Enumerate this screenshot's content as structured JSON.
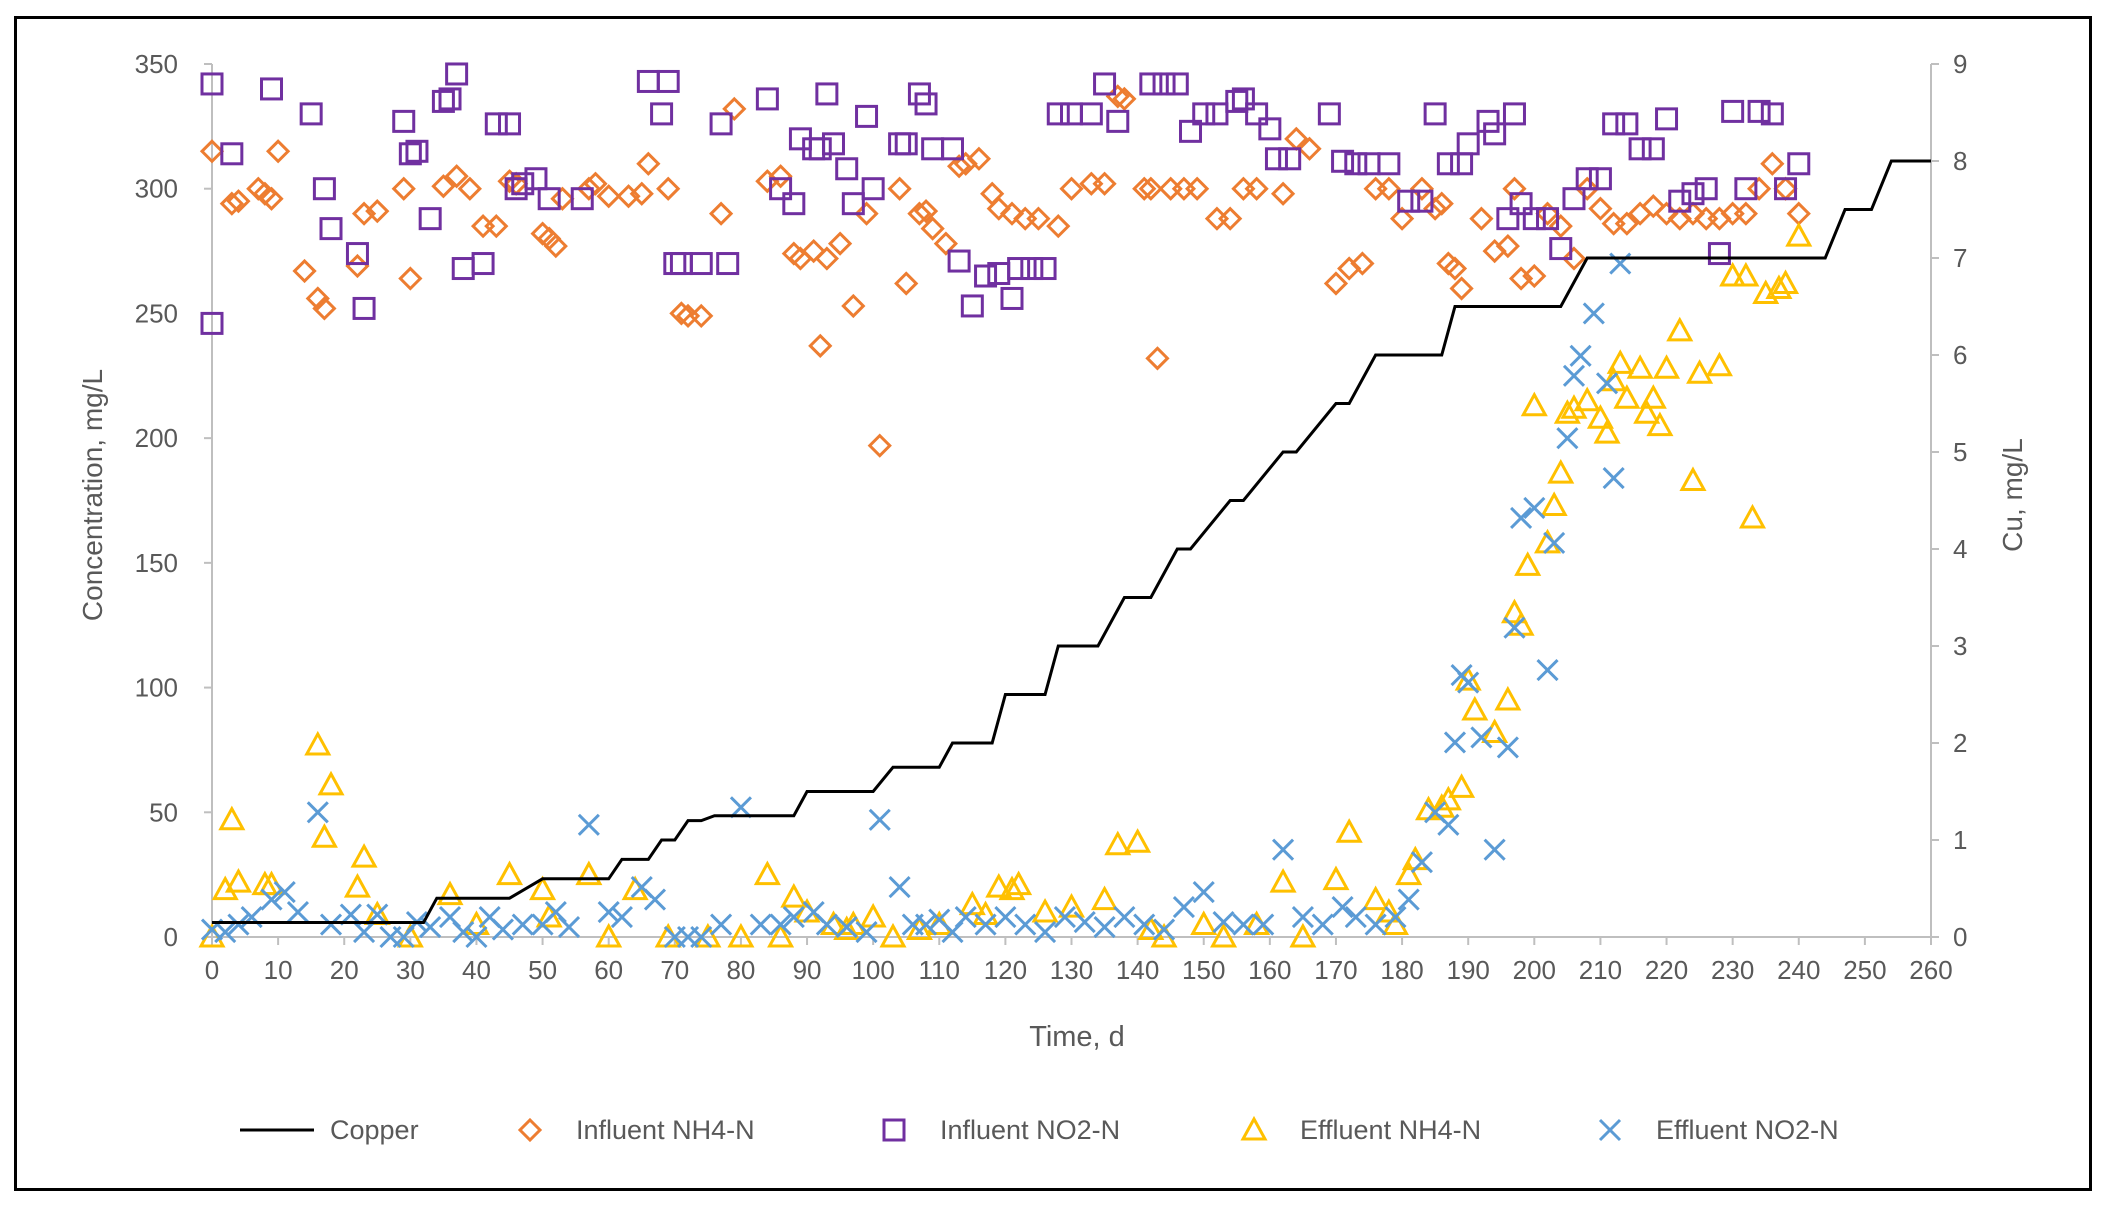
{
  "chart_data": {
    "type": "scatter",
    "xlabel": "Time, d",
    "ylabel_left": "Concentration, mg/L",
    "ylabel_right": "Cu, mg/L",
    "x_range": [
      0,
      260
    ],
    "x_ticks": [
      0,
      10,
      20,
      30,
      40,
      50,
      60,
      70,
      80,
      90,
      100,
      110,
      120,
      130,
      140,
      150,
      160,
      170,
      180,
      190,
      200,
      210,
      220,
      230,
      240,
      250,
      260
    ],
    "y_left_range": [
      0,
      350
    ],
    "y_left_ticks": [
      0,
      50,
      100,
      150,
      200,
      250,
      300,
      350
    ],
    "y_right_range": [
      0,
      9
    ],
    "y_right_ticks": [
      0,
      1,
      2,
      3,
      4,
      5,
      6,
      7,
      8,
      9
    ],
    "grid": false,
    "legend_position": "bottom",
    "series": [
      {
        "name": "Copper",
        "axis": "right",
        "marker": "line",
        "color": "#000000",
        "x": [
          0,
          32,
          34,
          45,
          50,
          60,
          62,
          66,
          68,
          70,
          72,
          74,
          76,
          78,
          88,
          90,
          100,
          103,
          110,
          112,
          118,
          120,
          126,
          128,
          134,
          138,
          142,
          146,
          148,
          154,
          156,
          162,
          164,
          170,
          172,
          176,
          178,
          186,
          188,
          194,
          196,
          204,
          208,
          222,
          224,
          230,
          232,
          240,
          244,
          247,
          251,
          254,
          260
        ],
        "y": [
          0.15,
          0.15,
          0.4,
          0.4,
          0.6,
          0.6,
          0.8,
          0.8,
          1.0,
          1.0,
          1.2,
          1.2,
          1.25,
          1.25,
          1.25,
          1.5,
          1.5,
          1.75,
          1.75,
          2.0,
          2.0,
          2.5,
          2.5,
          3.0,
          3.0,
          3.5,
          3.5,
          4.0,
          4.0,
          4.5,
          4.5,
          5.0,
          5.0,
          5.5,
          5.5,
          6.0,
          6.0,
          6.0,
          6.5,
          6.5,
          6.5,
          6.5,
          7.0,
          7.0,
          7.0,
          7.0,
          7.0,
          7.0,
          7.0,
          7.5,
          7.5,
          8.0,
          8.0
        ]
      },
      {
        "name": "Influent NH4-N",
        "axis": "left",
        "marker": "diamond",
        "color": "#ED7D31",
        "x": [
          0,
          3,
          4,
          7,
          8,
          9,
          10,
          14,
          16,
          17,
          22,
          23,
          25,
          29,
          30,
          35,
          37,
          39,
          41,
          43,
          45,
          46,
          50,
          51,
          52,
          53,
          57,
          58,
          60,
          63,
          65,
          66,
          69,
          71,
          72,
          74,
          77,
          79,
          84,
          86,
          88,
          89,
          91,
          92,
          93,
          95,
          97,
          99,
          101,
          104,
          105,
          107,
          108,
          109,
          111,
          113,
          114,
          116,
          118,
          119,
          121,
          123,
          125,
          128,
          130,
          133,
          135,
          137,
          138,
          141,
          142,
          143,
          145,
          147,
          149,
          152,
          154,
          156,
          158,
          162,
          164,
          166,
          170,
          172,
          174,
          176,
          178,
          180,
          183,
          185,
          186,
          187,
          188,
          189,
          192,
          194,
          196,
          197,
          198,
          200,
          202,
          204,
          206,
          208,
          210,
          212,
          214,
          216,
          218,
          220,
          222,
          224,
          226,
          228,
          230,
          232,
          234,
          236,
          238,
          240
        ],
        "y": [
          315,
          294,
          295,
          300,
          298,
          296,
          315,
          267,
          256,
          252,
          269,
          290,
          291,
          300,
          264,
          301,
          305,
          300,
          285,
          285,
          303,
          302,
          282,
          280,
          277,
          296,
          300,
          302,
          297,
          297,
          298,
          310,
          300,
          250,
          249,
          249,
          290,
          332,
          303,
          305,
          274,
          272,
          275,
          237,
          272,
          278,
          253,
          290,
          197,
          300,
          262,
          290,
          291,
          284,
          278,
          309,
          310,
          312,
          298,
          292,
          290,
          288,
          288,
          285,
          300,
          302,
          302,
          337,
          336,
          300,
          300,
          232,
          300,
          300,
          300,
          288,
          288,
          300,
          300,
          298,
          320,
          316,
          262,
          268,
          270,
          300,
          300,
          288,
          300,
          292,
          294,
          270,
          268,
          260,
          288,
          275,
          277,
          300,
          264,
          265,
          290,
          285,
          272,
          300,
          292,
          286,
          286,
          290,
          293,
          290,
          288,
          290,
          288,
          288,
          290,
          290,
          300,
          310,
          300,
          290
        ]
      },
      {
        "name": "Influent NO2-N",
        "axis": "left",
        "marker": "square",
        "color": "#7030A0",
        "x": [
          0,
          0,
          3,
          9,
          15,
          17,
          18,
          22,
          23,
          29,
          30,
          31,
          33,
          35,
          36,
          37,
          38,
          41,
          43,
          45,
          46,
          47,
          49,
          51,
          56,
          66,
          68,
          69,
          70,
          71,
          74,
          77,
          78,
          84,
          86,
          88,
          89,
          91,
          92,
          93,
          94,
          96,
          97,
          99,
          100,
          104,
          105,
          107,
          108,
          109,
          112,
          113,
          115,
          117,
          119,
          121,
          122,
          124,
          126,
          128,
          130,
          133,
          135,
          137,
          142,
          144,
          146,
          148,
          150,
          152,
          155,
          156,
          158,
          160,
          161,
          163,
          169,
          171,
          173,
          175,
          178,
          181,
          183,
          185,
          187,
          189,
          190,
          193,
          194,
          196,
          197,
          198,
          200,
          202,
          204,
          206,
          208,
          210,
          212,
          214,
          216,
          218,
          220,
          222,
          224,
          226,
          228,
          230,
          232,
          234,
          236,
          238,
          240
        ],
        "y": [
          342,
          246,
          314,
          340,
          330,
          300,
          284,
          274,
          252,
          327,
          314,
          315,
          288,
          335,
          336,
          346,
          268,
          270,
          326,
          326,
          300,
          302,
          304,
          296,
          296,
          343,
          330,
          343,
          270,
          270,
          270,
          326,
          270,
          336,
          300,
          294,
          320,
          316,
          316,
          338,
          318,
          308,
          294,
          329,
          300,
          318,
          318,
          338,
          334,
          316,
          316,
          271,
          253,
          265,
          266,
          256,
          268,
          268,
          268,
          330,
          330,
          330,
          342,
          327,
          342,
          342,
          342,
          323,
          330,
          330,
          335,
          336,
          330,
          324,
          312,
          312,
          330,
          311,
          310,
          310,
          310,
          295,
          295,
          330,
          310,
          310,
          318,
          327,
          322,
          288,
          330,
          294,
          288,
          288,
          276,
          296,
          304,
          304,
          326,
          326,
          316,
          316,
          328,
          295,
          298,
          300,
          274,
          331,
          300,
          331,
          330,
          300,
          310
        ]
      },
      {
        "name": "Effluent NH4-N",
        "axis": "left",
        "marker": "triangle",
        "color": "#FFC000",
        "x": [
          0,
          2,
          3,
          4,
          8,
          9,
          16,
          17,
          18,
          22,
          23,
          25,
          30,
          36,
          40,
          45,
          50,
          51,
          57,
          60,
          64,
          69,
          75,
          80,
          84,
          86,
          88,
          90,
          94,
          96,
          97,
          100,
          103,
          107,
          110,
          115,
          117,
          119,
          121,
          122,
          126,
          130,
          135,
          137,
          140,
          142,
          144,
          150,
          153,
          158,
          162,
          165,
          170,
          172,
          176,
          178,
          179,
          181,
          182,
          184,
          186,
          187,
          189,
          190,
          191,
          194,
          196,
          197,
          198,
          199,
          200,
          202,
          203,
          204,
          205,
          206,
          208,
          210,
          211,
          212,
          213,
          214,
          216,
          217,
          218,
          219,
          220,
          222,
          224,
          225,
          228,
          230,
          232,
          233,
          235,
          237,
          238,
          240
        ],
        "y": [
          0,
          19,
          47,
          22,
          21,
          21,
          77,
          40,
          61,
          20,
          32,
          9,
          0,
          17,
          5,
          25,
          19,
          8,
          25,
          0,
          19,
          0,
          0,
          0,
          25,
          0,
          16,
          10,
          5,
          3,
          5,
          8,
          0,
          3,
          5,
          13,
          9,
          20,
          19,
          21,
          10,
          12,
          15,
          37,
          38,
          3,
          0,
          5,
          0,
          5,
          22,
          0,
          23,
          42,
          15,
          10,
          5,
          25,
          31,
          51,
          52,
          55,
          60,
          103,
          91,
          82,
          95,
          130,
          125,
          149,
          213,
          158,
          173,
          186,
          210,
          212,
          215,
          208,
          202,
          223,
          230,
          216,
          228,
          210,
          216,
          205,
          228,
          243,
          183,
          226,
          229,
          265,
          265,
          168,
          258,
          260,
          262,
          281
        ]
      },
      {
        "name": "Effluent NO2-N",
        "axis": "left",
        "marker": "x",
        "color": "#5B9BD5",
        "x": [
          0,
          2,
          4,
          6,
          9,
          11,
          13,
          16,
          18,
          21,
          23,
          25,
          27,
          29,
          31,
          33,
          36,
          38,
          40,
          42,
          44,
          47,
          50,
          52,
          54,
          57,
          60,
          62,
          65,
          67,
          70,
          72,
          74,
          77,
          80,
          83,
          86,
          88,
          91,
          93,
          96,
          99,
          101,
          104,
          106,
          108,
          110,
          112,
          114,
          117,
          120,
          123,
          126,
          129,
          132,
          135,
          138,
          141,
          144,
          147,
          150,
          153,
          156,
          159,
          162,
          165,
          168,
          171,
          173,
          176,
          179,
          181,
          183,
          185,
          187,
          188,
          189,
          190,
          192,
          194,
          196,
          197,
          198,
          200,
          202,
          203,
          205,
          206,
          207,
          209,
          211,
          212,
          213
        ],
        "y": [
          3,
          2,
          5,
          8,
          15,
          18,
          10,
          50,
          5,
          9,
          2,
          9,
          0,
          0,
          6,
          4,
          8,
          2,
          0,
          8,
          3,
          5,
          5,
          10,
          4,
          45,
          10,
          8,
          20,
          15,
          0,
          0,
          0,
          5,
          52,
          5,
          5,
          8,
          10,
          5,
          4,
          2,
          47,
          20,
          5,
          5,
          7,
          2,
          8,
          5,
          8,
          5,
          2,
          8,
          6,
          4,
          8,
          5,
          3,
          12,
          18,
          6,
          5,
          5,
          35,
          8,
          5,
          12,
          8,
          5,
          8,
          15,
          30,
          50,
          45,
          78,
          105,
          102,
          80,
          35,
          76,
          124,
          168,
          172,
          107,
          158,
          200,
          225,
          233,
          250,
          222,
          184,
          270
        ]
      }
    ]
  }
}
